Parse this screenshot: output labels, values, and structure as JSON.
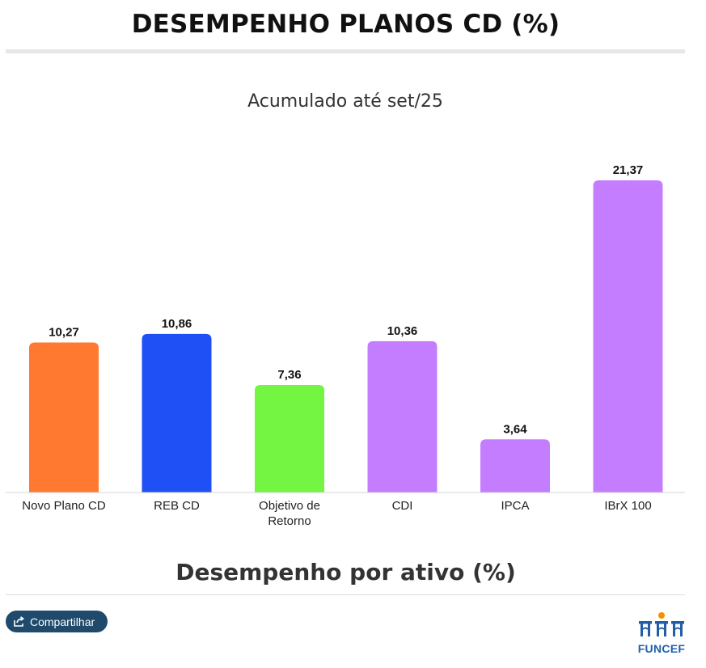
{
  "page": {
    "title": "DESEMPENHO PLANOS CD (%)",
    "section_title": "Desempenho por ativo (%)",
    "share_label": "Compartilhar",
    "logo_text": "FUNCEF"
  },
  "colors": {
    "brand_dark": "#1f4a6b",
    "logo_blue": "#1f5fa8",
    "logo_orange": "#f39200"
  },
  "chart_data": {
    "type": "bar",
    "title": "Acumulado até set/25",
    "categories": [
      "Novo Plano CD",
      "REB CD",
      "Objetivo de Retorno",
      "CDI",
      "IPCA",
      "IBrX 100"
    ],
    "category_lines": [
      [
        "Novo Plano CD"
      ],
      [
        "REB CD"
      ],
      [
        "Objetivo de",
        "Retorno"
      ],
      [
        "CDI"
      ],
      [
        "IPCA"
      ],
      [
        "IBrX 100"
      ]
    ],
    "values": [
      10.27,
      10.86,
      7.36,
      10.36,
      3.64,
      21.37
    ],
    "value_labels": [
      "10,27",
      "10,86",
      "7,36",
      "10,36",
      "3,64",
      "21,37"
    ],
    "bar_colors": [
      "#ff7a30",
      "#1e50f5",
      "#73f542",
      "#c57dff",
      "#c57dff",
      "#c57dff"
    ],
    "xlabel": "",
    "ylabel": "",
    "ylim": [
      0,
      21.37
    ],
    "grid": false,
    "legend": "none"
  }
}
